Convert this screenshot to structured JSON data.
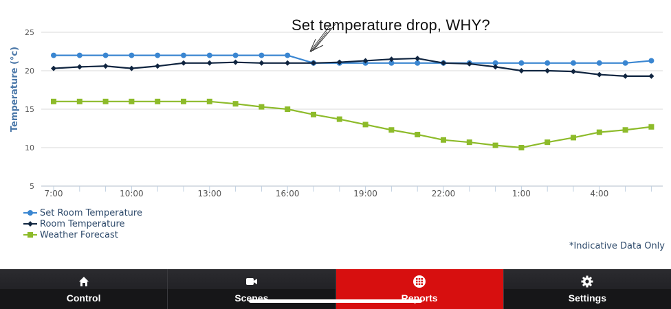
{
  "chart_data": {
    "type": "line",
    "ylabel": "Temperature (°c)",
    "ylim": [
      5,
      25
    ],
    "yticks": [
      5,
      10,
      15,
      20,
      25
    ],
    "grid": true,
    "legend_position": "bottom-left",
    "x": [
      "7:00",
      "8:00",
      "9:00",
      "10:00",
      "11:00",
      "12:00",
      "13:00",
      "14:00",
      "15:00",
      "16:00",
      "17:00",
      "18:00",
      "19:00",
      "20:00",
      "21:00",
      "22:00",
      "23:00",
      "0:00",
      "1:00",
      "2:00",
      "3:00",
      "4:00",
      "5:00",
      "6:00"
    ],
    "xtick_labels": [
      "7:00",
      "10:00",
      "13:00",
      "16:00",
      "19:00",
      "22:00",
      "1:00",
      "4:00"
    ],
    "series": [
      {
        "name": "Set Room Temperature",
        "color": "#3a86d1",
        "marker": "circle",
        "values": [
          22,
          22,
          22,
          22,
          22,
          22,
          22,
          22,
          22,
          22,
          21,
          21,
          21,
          21,
          21,
          21,
          21,
          21,
          21,
          21,
          21,
          21,
          21,
          21.3
        ]
      },
      {
        "name": "Room Temperature",
        "color": "#102540",
        "marker": "diamond",
        "values": [
          20.3,
          20.5,
          20.6,
          20.3,
          20.6,
          21,
          21,
          21.1,
          21,
          21,
          21,
          21.1,
          21.3,
          21.5,
          21.6,
          21,
          20.9,
          20.5,
          20,
          20,
          19.9,
          19.5,
          19.3,
          19.3
        ]
      },
      {
        "name": "Weather Forecast",
        "color": "#8dbb2a",
        "marker": "square",
        "values": [
          16,
          16,
          16,
          16,
          16,
          16,
          16,
          15.7,
          15.3,
          15,
          14.3,
          13.7,
          13,
          12.3,
          11.7,
          11,
          10.7,
          10.3,
          10,
          10.7,
          11.3,
          12,
          12.3,
          12.7
        ]
      }
    ],
    "note": "*Indicative Data Only",
    "annotation": "Set temperature drop, WHY?"
  },
  "tabs": [
    {
      "label": "Control",
      "icon": "home-icon",
      "active": false
    },
    {
      "label": "Scenes",
      "icon": "video-camera-icon",
      "active": false
    },
    {
      "label": "Reports",
      "icon": "grid-icon",
      "active": true
    },
    {
      "label": "Settings",
      "icon": "gear-icon",
      "active": false
    }
  ]
}
